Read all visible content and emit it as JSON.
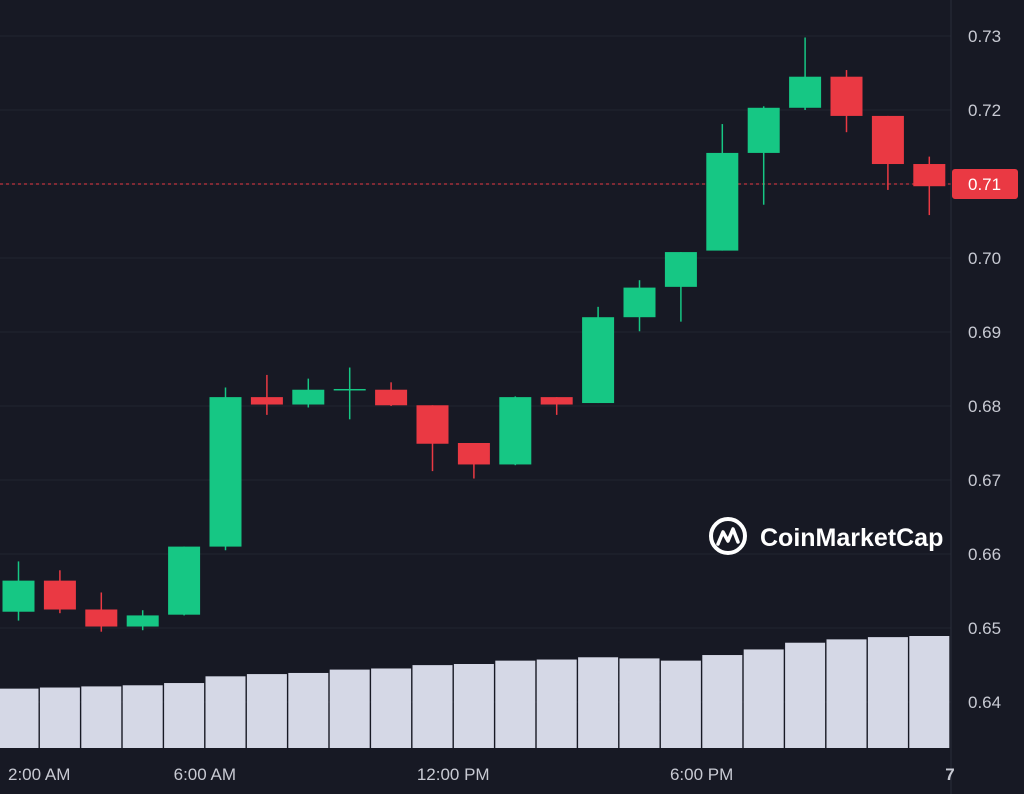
{
  "chart_data": {
    "type": "candlestick",
    "watermark": "CoinMarketCap",
    "current_price": 0.71,
    "current_price_label": "0.71",
    "up_color": "#16c784",
    "down_color": "#ea3943",
    "volume_color": "#d5d8e6",
    "background": "#171924",
    "grid": true,
    "ylim": [
      0.635,
      0.735
    ],
    "y_ticks": [
      {
        "value": 0.73,
        "label": "0.73"
      },
      {
        "value": 0.72,
        "label": "0.72"
      },
      {
        "value": 0.71,
        "label": "0.71"
      },
      {
        "value": 0.7,
        "label": "0.70"
      },
      {
        "value": 0.69,
        "label": "0.69"
      },
      {
        "value": 0.68,
        "label": "0.68"
      },
      {
        "value": 0.67,
        "label": "0.67"
      },
      {
        "value": 0.66,
        "label": "0.66"
      },
      {
        "value": 0.65,
        "label": "0.65"
      },
      {
        "value": 0.64,
        "label": "0.64"
      }
    ],
    "x_ticks": [
      {
        "index": 0.5,
        "label": "2:00 AM"
      },
      {
        "index": 4.5,
        "label": "6:00 AM"
      },
      {
        "index": 10.5,
        "label": "12:00 PM"
      },
      {
        "index": 16.5,
        "label": "6:00 PM"
      },
      {
        "index": 22.5,
        "label": "7"
      }
    ],
    "candles": [
      {
        "open": 0.6522,
        "high": 0.659,
        "low": 0.651,
        "close": 0.6564
      },
      {
        "open": 0.6564,
        "high": 0.6578,
        "low": 0.652,
        "close": 0.6525
      },
      {
        "open": 0.6525,
        "high": 0.6548,
        "low": 0.6495,
        "close": 0.6502
      },
      {
        "open": 0.6502,
        "high": 0.6524,
        "low": 0.6497,
        "close": 0.6517
      },
      {
        "open": 0.6518,
        "high": 0.661,
        "low": 0.6517,
        "close": 0.661
      },
      {
        "open": 0.661,
        "high": 0.6825,
        "low": 0.6605,
        "close": 0.6812
      },
      {
        "open": 0.6812,
        "high": 0.6842,
        "low": 0.6788,
        "close": 0.6802
      },
      {
        "open": 0.6802,
        "high": 0.6837,
        "low": 0.6798,
        "close": 0.6822
      },
      {
        "open": 0.6821,
        "high": 0.6852,
        "low": 0.6782,
        "close": 0.6823
      },
      {
        "open": 0.6822,
        "high": 0.6832,
        "low": 0.68,
        "close": 0.6801
      },
      {
        "open": 0.6801,
        "high": 0.6801,
        "low": 0.6712,
        "close": 0.6749
      },
      {
        "open": 0.675,
        "high": 0.675,
        "low": 0.6702,
        "close": 0.6721
      },
      {
        "open": 0.6721,
        "high": 0.6813,
        "low": 0.672,
        "close": 0.6812
      },
      {
        "open": 0.6812,
        "high": 0.6812,
        "low": 0.6788,
        "close": 0.6802
      },
      {
        "open": 0.6804,
        "high": 0.6934,
        "low": 0.6804,
        "close": 0.692
      },
      {
        "open": 0.692,
        "high": 0.697,
        "low": 0.6901,
        "close": 0.696
      },
      {
        "open": 0.6961,
        "high": 0.7008,
        "low": 0.6914,
        "close": 0.7008
      },
      {
        "open": 0.701,
        "high": 0.7181,
        "low": 0.701,
        "close": 0.7142
      },
      {
        "open": 0.7142,
        "high": 0.7205,
        "low": 0.7072,
        "close": 0.7203
      },
      {
        "open": 0.7203,
        "high": 0.7298,
        "low": 0.72,
        "close": 0.7245
      },
      {
        "open": 0.7245,
        "high": 0.7254,
        "low": 0.717,
        "close": 0.7192
      },
      {
        "open": 0.7192,
        "high": 0.7192,
        "low": 0.7092,
        "close": 0.7127
      },
      {
        "open": 0.7127,
        "high": 0.7137,
        "low": 0.7058,
        "close": 0.7097
      }
    ],
    "volume": [
      0.53,
      0.54,
      0.55,
      0.56,
      0.58,
      0.64,
      0.66,
      0.67,
      0.7,
      0.71,
      0.74,
      0.75,
      0.78,
      0.79,
      0.81,
      0.8,
      0.78,
      0.83,
      0.88,
      0.94,
      0.97,
      0.99,
      1.0
    ]
  }
}
